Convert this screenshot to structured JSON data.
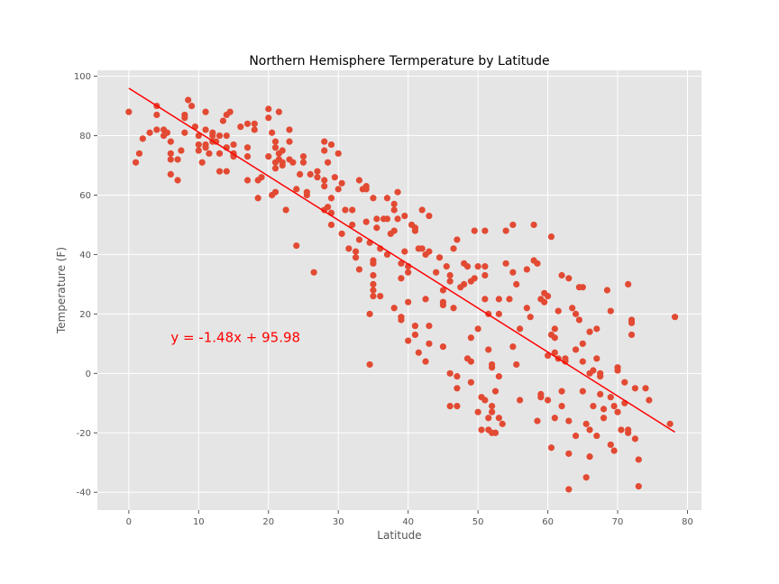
{
  "chart_data": {
    "type": "scatter",
    "title": "Northern Hemisphere Termperature by Latitude",
    "xlabel": "Latitude",
    "ylabel": "Temperature (F)",
    "xlim": [
      -4.5,
      82
    ],
    "ylim": [
      -46,
      102
    ],
    "xticks": [
      0,
      10,
      20,
      30,
      40,
      50,
      60,
      70,
      80
    ],
    "yticks": [
      -40,
      -20,
      0,
      20,
      40,
      60,
      80,
      100
    ],
    "grid": true,
    "colors": {
      "background": "#e5e5e5",
      "grid": "#ffffff",
      "points": "#e24a33",
      "regression": "#ff0000",
      "annotation": "#ff0000"
    },
    "regression": {
      "slope": -1.48,
      "intercept": 95.98,
      "x_range": [
        0,
        78.2
      ],
      "equation_label": "y = -1.48x + 95.98",
      "label_position": [
        6,
        10.5
      ]
    },
    "points": [
      [
        0,
        88
      ],
      [
        1,
        71
      ],
      [
        1.5,
        74
      ],
      [
        2,
        79
      ],
      [
        3,
        81
      ],
      [
        4,
        82
      ],
      [
        4,
        87
      ],
      [
        4,
        90
      ],
      [
        5,
        82
      ],
      [
        5,
        80
      ],
      [
        5.5,
        81
      ],
      [
        6,
        78
      ],
      [
        6,
        72
      ],
      [
        6,
        74
      ],
      [
        6,
        67
      ],
      [
        7,
        72
      ],
      [
        7,
        65
      ],
      [
        7.5,
        75
      ],
      [
        8,
        86
      ],
      [
        8,
        87
      ],
      [
        8,
        81
      ],
      [
        8.5,
        92
      ],
      [
        9,
        90
      ],
      [
        9.5,
        83
      ],
      [
        10,
        75
      ],
      [
        10,
        77
      ],
      [
        10,
        80
      ],
      [
        10.5,
        71
      ],
      [
        11,
        82
      ],
      [
        11,
        77
      ],
      [
        11,
        76
      ],
      [
        11,
        88
      ],
      [
        11.5,
        74
      ],
      [
        12,
        80
      ],
      [
        12,
        81
      ],
      [
        12,
        78
      ],
      [
        12.5,
        78
      ],
      [
        13,
        80
      ],
      [
        13,
        74
      ],
      [
        13,
        68
      ],
      [
        13.5,
        85
      ],
      [
        14,
        80
      ],
      [
        14,
        76
      ],
      [
        14,
        68
      ],
      [
        14,
        87
      ],
      [
        14.5,
        88
      ],
      [
        15,
        74
      ],
      [
        15,
        77
      ],
      [
        15,
        74
      ],
      [
        15,
        73
      ],
      [
        16,
        83
      ],
      [
        17,
        84
      ],
      [
        17,
        76
      ],
      [
        17,
        73
      ],
      [
        17,
        65
      ],
      [
        18,
        84
      ],
      [
        18,
        82
      ],
      [
        18.5,
        59
      ],
      [
        18.5,
        65
      ],
      [
        19,
        66
      ],
      [
        20,
        73
      ],
      [
        20,
        86
      ],
      [
        20,
        89
      ],
      [
        20.5,
        60
      ],
      [
        20.5,
        81
      ],
      [
        21,
        76
      ],
      [
        21,
        71
      ],
      [
        21,
        69
      ],
      [
        21,
        78
      ],
      [
        21,
        61
      ],
      [
        21.5,
        88
      ],
      [
        21.5,
        72
      ],
      [
        21.5,
        74
      ],
      [
        22,
        75
      ],
      [
        22,
        70
      ],
      [
        22,
        71
      ],
      [
        22.5,
        55
      ],
      [
        23,
        82
      ],
      [
        23,
        78
      ],
      [
        23,
        72
      ],
      [
        23.5,
        71
      ],
      [
        24,
        43
      ],
      [
        24,
        62
      ],
      [
        24.5,
        67
      ],
      [
        25,
        71
      ],
      [
        25,
        73
      ],
      [
        25.5,
        61
      ],
      [
        25.5,
        60
      ],
      [
        26,
        67
      ],
      [
        26.5,
        34
      ],
      [
        27,
        66
      ],
      [
        27,
        68
      ],
      [
        28,
        75
      ],
      [
        28,
        78
      ],
      [
        28,
        65
      ],
      [
        28,
        63
      ],
      [
        28,
        55
      ],
      [
        28.5,
        56
      ],
      [
        28.5,
        71
      ],
      [
        29,
        77
      ],
      [
        29,
        59
      ],
      [
        29,
        54
      ],
      [
        29,
        50
      ],
      [
        29.5,
        66
      ],
      [
        30,
        74
      ],
      [
        30,
        62
      ],
      [
        30.5,
        64
      ],
      [
        30.5,
        47
      ],
      [
        31,
        55
      ],
      [
        31.5,
        42
      ],
      [
        32,
        50
      ],
      [
        32,
        55
      ],
      [
        32.5,
        39
      ],
      [
        32.5,
        41
      ],
      [
        33,
        65
      ],
      [
        33,
        35
      ],
      [
        33,
        45
      ],
      [
        33.5,
        62
      ],
      [
        34,
        62
      ],
      [
        34,
        63
      ],
      [
        34,
        51
      ],
      [
        34.5,
        44
      ],
      [
        34.5,
        20
      ],
      [
        34.5,
        3
      ],
      [
        35,
        26
      ],
      [
        35,
        28
      ],
      [
        35,
        30
      ],
      [
        35,
        33
      ],
      [
        35,
        37
      ],
      [
        35,
        38
      ],
      [
        35,
        59
      ],
      [
        35.5,
        52
      ],
      [
        35.5,
        49
      ],
      [
        36,
        26
      ],
      [
        36,
        42
      ],
      [
        36.5,
        52
      ],
      [
        37,
        40
      ],
      [
        37,
        59
      ],
      [
        37,
        52
      ],
      [
        37.5,
        47
      ],
      [
        38,
        22
      ],
      [
        38,
        48
      ],
      [
        38,
        55
      ],
      [
        38,
        57
      ],
      [
        38.5,
        61
      ],
      [
        38.5,
        52
      ],
      [
        39,
        18
      ],
      [
        39,
        19
      ],
      [
        39,
        32
      ],
      [
        39,
        37
      ],
      [
        39.5,
        41
      ],
      [
        39.5,
        53
      ],
      [
        40,
        11
      ],
      [
        40,
        24
      ],
      [
        40,
        34
      ],
      [
        40,
        36
      ],
      [
        40.5,
        50
      ],
      [
        41,
        16
      ],
      [
        41,
        13
      ],
      [
        41,
        49
      ],
      [
        41,
        48
      ],
      [
        41.5,
        42
      ],
      [
        41.5,
        7
      ],
      [
        42,
        55
      ],
      [
        42,
        42
      ],
      [
        42.5,
        25
      ],
      [
        42.5,
        4
      ],
      [
        42.5,
        40
      ],
      [
        43,
        41
      ],
      [
        43,
        16
      ],
      [
        43,
        10
      ],
      [
        43,
        53
      ],
      [
        44,
        34
      ],
      [
        44.5,
        39
      ],
      [
        45,
        9
      ],
      [
        45,
        28
      ],
      [
        45,
        24
      ],
      [
        45,
        23
      ],
      [
        45.5,
        36
      ],
      [
        46,
        0
      ],
      [
        46,
        31
      ],
      [
        46,
        33
      ],
      [
        46,
        -11
      ],
      [
        46.5,
        22
      ],
      [
        46.5,
        42
      ],
      [
        47,
        -5
      ],
      [
        47,
        -11
      ],
      [
        47,
        -1
      ],
      [
        47,
        45
      ],
      [
        47.5,
        29
      ],
      [
        48,
        30
      ],
      [
        48,
        37
      ],
      [
        48.5,
        36
      ],
      [
        48.5,
        5
      ],
      [
        49,
        -3
      ],
      [
        49,
        4
      ],
      [
        49,
        12
      ],
      [
        49,
        31
      ],
      [
        49.5,
        48
      ],
      [
        49.5,
        32
      ],
      [
        50,
        15
      ],
      [
        50,
        -13
      ],
      [
        50,
        36
      ],
      [
        50.5,
        -8
      ],
      [
        50.5,
        -19
      ],
      [
        51,
        -9
      ],
      [
        51,
        25
      ],
      [
        51,
        33
      ],
      [
        51,
        36
      ],
      [
        51,
        48
      ],
      [
        51.5,
        8
      ],
      [
        51.5,
        20
      ],
      [
        51.5,
        -15
      ],
      [
        51.5,
        -19
      ],
      [
        52,
        3
      ],
      [
        52,
        -11
      ],
      [
        52,
        -13
      ],
      [
        52,
        2
      ],
      [
        52,
        -20
      ],
      [
        52.5,
        -20
      ],
      [
        52.5,
        -6
      ],
      [
        53,
        -1
      ],
      [
        53,
        25
      ],
      [
        53,
        20
      ],
      [
        53,
        -15
      ],
      [
        53.5,
        -17
      ],
      [
        54,
        48
      ],
      [
        54,
        37
      ],
      [
        54.5,
        25
      ],
      [
        55,
        50
      ],
      [
        55,
        9
      ],
      [
        55,
        34
      ],
      [
        55.5,
        30
      ],
      [
        55.5,
        3
      ],
      [
        56,
        15
      ],
      [
        56,
        -9
      ],
      [
        57,
        22
      ],
      [
        57,
        35
      ],
      [
        57.5,
        19
      ],
      [
        58,
        38
      ],
      [
        58,
        50
      ],
      [
        58.5,
        37
      ],
      [
        58.5,
        -16
      ],
      [
        59,
        25
      ],
      [
        59,
        -8
      ],
      [
        59,
        -7
      ],
      [
        59.5,
        24
      ],
      [
        59.5,
        27
      ],
      [
        60,
        26
      ],
      [
        60,
        -9
      ],
      [
        60,
        6
      ],
      [
        60.5,
        46
      ],
      [
        60.5,
        13
      ],
      [
        60.5,
        -25
      ],
      [
        61,
        12
      ],
      [
        61,
        7
      ],
      [
        61,
        15
      ],
      [
        61,
        -15
      ],
      [
        61.5,
        5
      ],
      [
        61.5,
        21
      ],
      [
        62,
        -6
      ],
      [
        62,
        -11
      ],
      [
        62,
        33
      ],
      [
        62.5,
        4
      ],
      [
        62.5,
        5
      ],
      [
        63,
        -16
      ],
      [
        63,
        -27
      ],
      [
        63,
        -39
      ],
      [
        63,
        32
      ],
      [
        63.5,
        22
      ],
      [
        64,
        20
      ],
      [
        64,
        -21
      ],
      [
        64,
        8
      ],
      [
        64.5,
        29
      ],
      [
        64.5,
        18
      ],
      [
        65,
        29
      ],
      [
        65,
        10
      ],
      [
        65,
        4
      ],
      [
        65,
        -6
      ],
      [
        65.5,
        -17
      ],
      [
        65.5,
        -35
      ],
      [
        66,
        -19
      ],
      [
        66,
        -28
      ],
      [
        66,
        14
      ],
      [
        66,
        0
      ],
      [
        66.5,
        1
      ],
      [
        66.5,
        -11
      ],
      [
        67,
        -21
      ],
      [
        67,
        5
      ],
      [
        67,
        15
      ],
      [
        67.5,
        -7
      ],
      [
        67.5,
        -1
      ],
      [
        67.5,
        0
      ],
      [
        68,
        -15
      ],
      [
        68,
        -12
      ],
      [
        68.5,
        28
      ],
      [
        69,
        -8
      ],
      [
        69,
        21
      ],
      [
        69,
        -24
      ],
      [
        69.5,
        -26
      ],
      [
        69.5,
        -11
      ],
      [
        70,
        2
      ],
      [
        70,
        1
      ],
      [
        70,
        -13
      ],
      [
        70.5,
        -19
      ],
      [
        71,
        -10
      ],
      [
        71,
        -3
      ],
      [
        71.5,
        30
      ],
      [
        71.5,
        -20
      ],
      [
        71.5,
        -19
      ],
      [
        72,
        18
      ],
      [
        72,
        13
      ],
      [
        72,
        17
      ],
      [
        72.5,
        -22
      ],
      [
        72.5,
        -5
      ],
      [
        73,
        -29
      ],
      [
        73,
        -38
      ],
      [
        74,
        -5
      ],
      [
        74.5,
        -9
      ],
      [
        77.5,
        -17
      ],
      [
        78.2,
        19
      ]
    ]
  }
}
